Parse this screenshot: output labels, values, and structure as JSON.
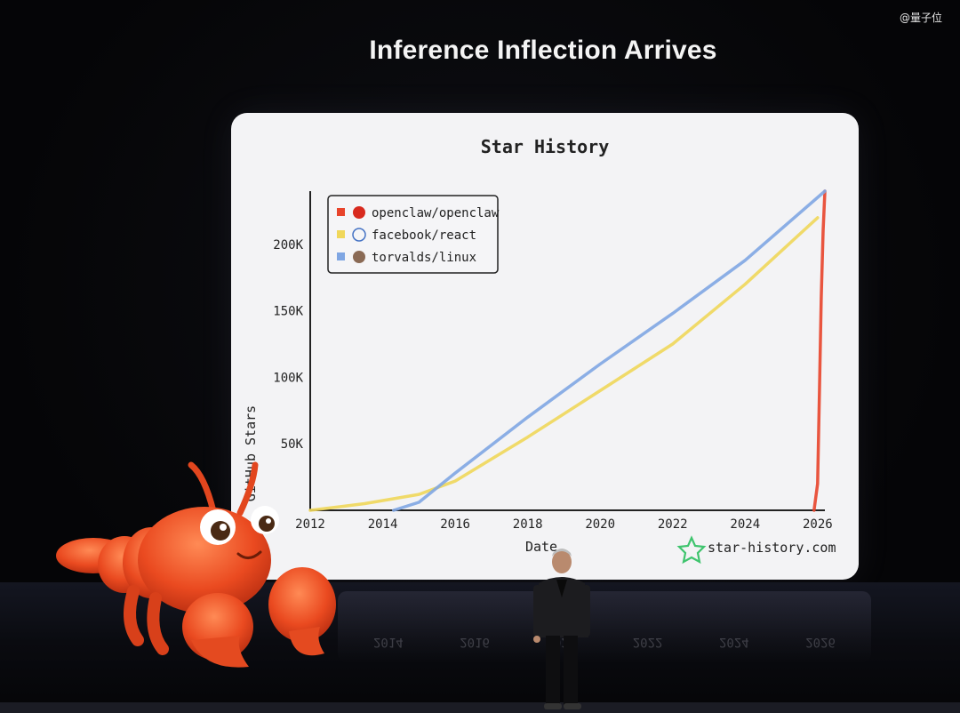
{
  "watermark": "@量子位",
  "slide": {
    "title": "Inference Inflection Arrives"
  },
  "chart_data": {
    "type": "line",
    "title": "Star History",
    "xlabel": "Date",
    "ylabel": "GitHub Stars",
    "x_ticks": [
      "2012",
      "2014",
      "2016",
      "2018",
      "2020",
      "2022",
      "2024",
      "2026"
    ],
    "y_ticks": [
      "50K",
      "100K",
      "150K",
      "200K"
    ],
    "xlim": [
      2012,
      2026.2
    ],
    "ylim": [
      0,
      240000
    ],
    "legend_position": "top-left",
    "credit": "star-history.com",
    "series": [
      {
        "name": "openclaw/openclaw",
        "color": "#e8442b",
        "x": [
          "2025.9",
          "2026.0",
          "2026.05",
          "2026.1",
          "2026.15",
          "2026.2"
        ],
        "y": [
          0,
          20000,
          90000,
          160000,
          210000,
          240000
        ]
      },
      {
        "name": "facebook/react",
        "color": "#f0d75a",
        "x": [
          "2012.0",
          "2013.5",
          "2015.0",
          "2016.0",
          "2018.0",
          "2020.0",
          "2022.0",
          "2024.0",
          "2026.0"
        ],
        "y": [
          0,
          5000,
          12000,
          22000,
          55000,
          90000,
          125000,
          170000,
          220000
        ]
      },
      {
        "name": "torvalds/linux",
        "color": "#7fa6e3",
        "x": [
          "2014.3",
          "2015.0",
          "2016.0",
          "2018.0",
          "2020.0",
          "2022.0",
          "2024.0",
          "2026.2"
        ],
        "y": [
          0,
          6000,
          28000,
          70000,
          110000,
          148000,
          188000,
          240000
        ]
      }
    ]
  }
}
